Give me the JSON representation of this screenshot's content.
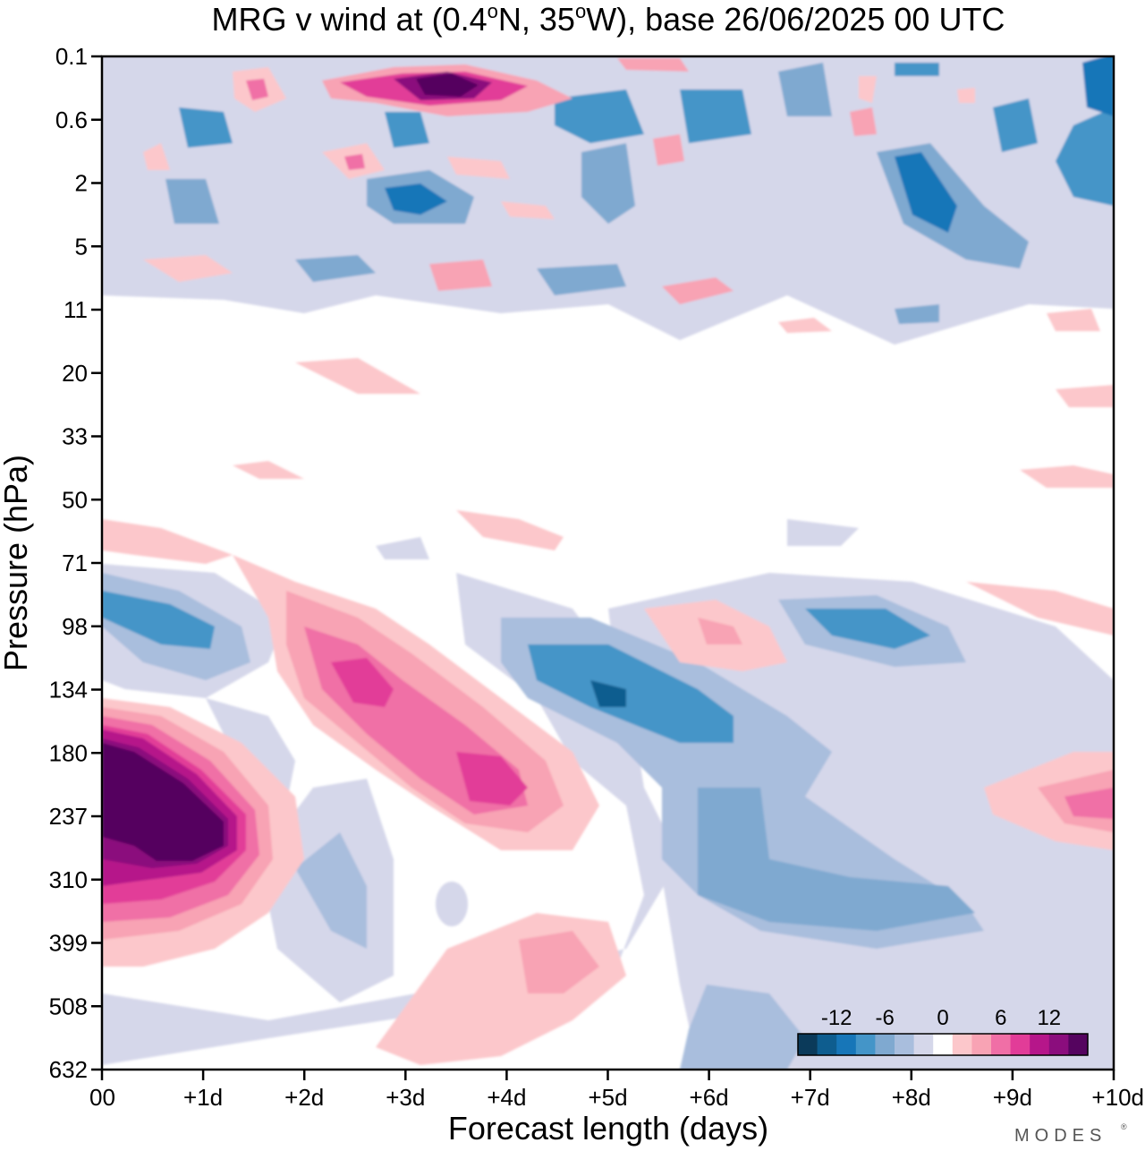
{
  "chart_data": {
    "type": "contour",
    "title_parts": [
      "MRG v wind at (0.4",
      "o",
      "N, 35",
      "o",
      "W),  base 26/06/2025  00 UTC"
    ],
    "xlabel": "Forecast length (days)",
    "ylabel": "Pressure (hPa)",
    "x_ticks": [
      "00",
      "+1d",
      "+2d",
      "+3d",
      "+4d",
      "+5d",
      "+6d",
      "+7d",
      "+8d",
      "+9d",
      "+10d"
    ],
    "xlim": [
      0,
      10
    ],
    "y_ticks": [
      "0.1",
      "0.6",
      "2",
      "5",
      "11",
      "20",
      "33",
      "50",
      "71",
      "98",
      "134",
      "180",
      "237",
      "310",
      "399",
      "508",
      "632"
    ],
    "colorbar": {
      "labels": [
        "-12",
        "-6",
        "0",
        "6",
        "12"
      ],
      "levels": [
        -15,
        -12.5,
        -10,
        -7.5,
        -5,
        -2.5,
        2.5,
        5,
        7.5,
        10,
        12.5,
        15
      ],
      "colors": [
        "#0b3a5a",
        "#0e5d8f",
        "#1776b8",
        "#4495c8",
        "#7fa9d0",
        "#a9bedd",
        "#d5d7ea",
        "#ffffff",
        "#fcc7cb",
        "#f8a3b4",
        "#f06fa6",
        "#e23c98",
        "#b6168a",
        "#8b0d7d",
        "#55045f"
      ]
    },
    "features": [
      {
        "desc": "strong positive v wind",
        "x_day": 0.6,
        "y_hpa": 237,
        "value": 18
      },
      {
        "desc": "positive band",
        "x_day": 2.5,
        "y_hpa": 134,
        "value": 10
      },
      {
        "desc": "positive band",
        "x_day": 3.8,
        "y_hpa": 200,
        "value": 9
      },
      {
        "desc": "negative band",
        "x_day": 5.2,
        "y_hpa": 134,
        "value": -10
      },
      {
        "desc": "negative region",
        "x_day": 6.3,
        "y_hpa": 310,
        "value": -6
      },
      {
        "desc": "positive region",
        "x_day": 9.6,
        "y_hpa": 237,
        "value": 7
      },
      {
        "desc": "strong positive v wind",
        "x_day": 3.5,
        "y_hpa": 0.3,
        "value": 16
      },
      {
        "desc": "strong negative v wind",
        "x_day": 8.0,
        "y_hpa": 2,
        "value": -12
      }
    ],
    "brand": "MODES"
  }
}
